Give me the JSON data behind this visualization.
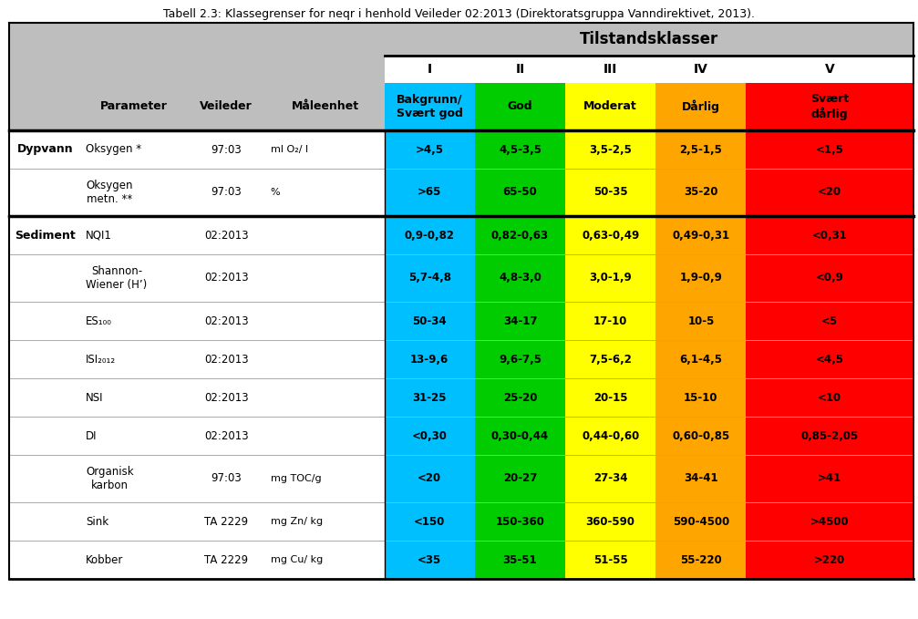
{
  "title": "Tabell 2.3: Klassegrenser for neqr i henhold Veileder 02:2013 (Direktoratsgruppa Vanndirektivet, 2013).",
  "tilstandsklasser_label": "Tilstandsklasser",
  "sub_headers": [
    "Bakgrunn/\nSvært god",
    "God",
    "Moderat",
    "Dårlig",
    "Svært\ndårlig"
  ],
  "col_headers": [
    "Parameter",
    "Veileder",
    "Måleenhet"
  ],
  "roman_labels": [
    "I",
    "II",
    "III",
    "IV",
    "V"
  ],
  "colors": {
    "I": "#00BFFF",
    "II": "#00CC00",
    "III": "#FFFF00",
    "IV": "#FFA500",
    "V": "#FF0000",
    "header_bg": "#BEBEBE",
    "white": "#FFFFFF",
    "black": "#000000",
    "text_normal": "#000000",
    "thin_line": "#AAAAAA"
  },
  "rows": [
    {
      "section": "Dypvann",
      "parameter": "Oksygen *",
      "veileder": "97:03",
      "maleenhet": "ml O₂/ l",
      "values": [
        ">4,5",
        "4,5-3,5",
        "3,5-2,5",
        "2,5-1,5",
        "<1,5"
      ],
      "section_start": true,
      "tall": false
    },
    {
      "section": "",
      "parameter": "Oksygen\nmetn. **",
      "veileder": "97:03",
      "maleenhet": "%",
      "values": [
        ">65",
        "65-50",
        "50-35",
        "35-20",
        "<20"
      ],
      "section_start": false,
      "tall": true
    },
    {
      "section": "Sediment",
      "parameter": "NQI1",
      "veileder": "02:2013",
      "maleenhet": "",
      "values": [
        "0,9-0,82",
        "0,82-0,63",
        "0,63-0,49",
        "0,49-0,31",
        "<0,31"
      ],
      "section_start": true,
      "tall": false
    },
    {
      "section": "",
      "parameter": "Shannon-\nWiener (H’)",
      "veileder": "02:2013",
      "maleenhet": "",
      "values": [
        "5,7-4,8",
        "4,8-3,0",
        "3,0-1,9",
        "1,9-0,9",
        "<0,9"
      ],
      "section_start": false,
      "tall": true
    },
    {
      "section": "",
      "parameter": "ES₁₀₀",
      "veileder": "02:2013",
      "maleenhet": "",
      "values": [
        "50-34",
        "34-17",
        "17-10",
        "10-5",
        "<5"
      ],
      "section_start": false,
      "tall": false
    },
    {
      "section": "",
      "parameter": "ISI₂₀₁₂",
      "veileder": "02:2013",
      "maleenhet": "",
      "values": [
        "13-9,6",
        "9,6-7,5",
        "7,5-6,2",
        "6,1-4,5",
        "<4,5"
      ],
      "section_start": false,
      "tall": false
    },
    {
      "section": "",
      "parameter": "NSI",
      "veileder": "02:2013",
      "maleenhet": "",
      "values": [
        "31-25",
        "25-20",
        "20-15",
        "15-10",
        "<10"
      ],
      "section_start": false,
      "tall": false
    },
    {
      "section": "",
      "parameter": "DI",
      "veileder": "02:2013",
      "maleenhet": "",
      "values": [
        "<0,30",
        "0,30-0,44",
        "0,44-0,60",
        "0,60-0,85",
        "0,85-2,05"
      ],
      "section_start": false,
      "tall": false
    },
    {
      "section": "",
      "parameter": "Organisk\nkarbon",
      "veileder": "97:03",
      "maleenhet": "mg TOC/g",
      "values": [
        "<20",
        "20-27",
        "27-34",
        "34-41",
        ">41"
      ],
      "section_start": false,
      "tall": true
    },
    {
      "section": "",
      "parameter": "Sink",
      "veileder": "TA 2229",
      "maleenhet": "mg Zn/ kg",
      "values": [
        "<150",
        "150-360",
        "360-590",
        "590-4500",
        ">4500"
      ],
      "section_start": false,
      "tall": false
    },
    {
      "section": "",
      "parameter": "Kobber",
      "veileder": "TA 2229",
      "maleenhet": "mg Cu/ kg",
      "values": [
        "<35",
        "35-51",
        "51-55",
        "55-220",
        ">220"
      ],
      "section_start": false,
      "tall": false
    }
  ]
}
